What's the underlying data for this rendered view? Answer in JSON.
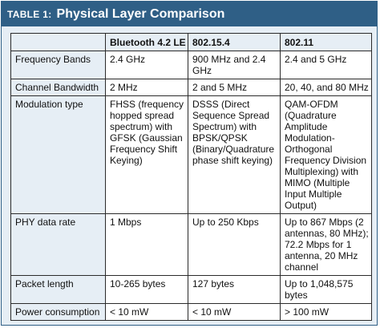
{
  "title_bar": {
    "label": "TABLE 1:",
    "title": "Physical Layer Comparison"
  },
  "columns": [
    "",
    "Bluetooth 4.2 LE",
    "802.15.4",
    "802.11"
  ],
  "rows": [
    {
      "label": "Frequency Bands",
      "cells": [
        "2.4 GHz",
        "900 MHz and 2.4 GHz",
        "2.4 and 5 GHz"
      ]
    },
    {
      "label": "Channel Bandwidth",
      "cells": [
        "2 MHz",
        "2 and 5 MHz",
        "20, 40, and 80 MHz"
      ]
    },
    {
      "label": "Modulation type",
      "cells": [
        "FHSS (frequency hopped spread spectrum) with GFSK (Gaussian Frequency Shift Keying)",
        "DSSS (Direct Sequence Spread Spectrum) with BPSK/QPSK (Binary/Quadrature phase shift keying)",
        "QAM-OFDM (Quadrature Amplitude Modulation-Orthogonal Frequency Division Multiplexing) with MIMO (Multiple Input Multiple Output)"
      ]
    },
    {
      "label": "PHY data rate",
      "cells": [
        "1 Mbps",
        "Up to 250 Kbps",
        "Up to 867 Mbps (2 antennas, 80 MHz); 72.2 Mbps for 1 antenna, 20 MHz channel"
      ]
    },
    {
      "label": "Packet length",
      "cells": [
        "10-265 bytes",
        "127 bytes",
        "Up to 1,048,575 bytes"
      ]
    },
    {
      "label": "Power consumption",
      "cells": [
        "< 10 mW",
        "< 10 mW",
        "> 100 mW"
      ]
    }
  ],
  "colors": {
    "header_bar": "#2f5f86",
    "panel": "#e6eef5",
    "cell": "#ffffff"
  }
}
